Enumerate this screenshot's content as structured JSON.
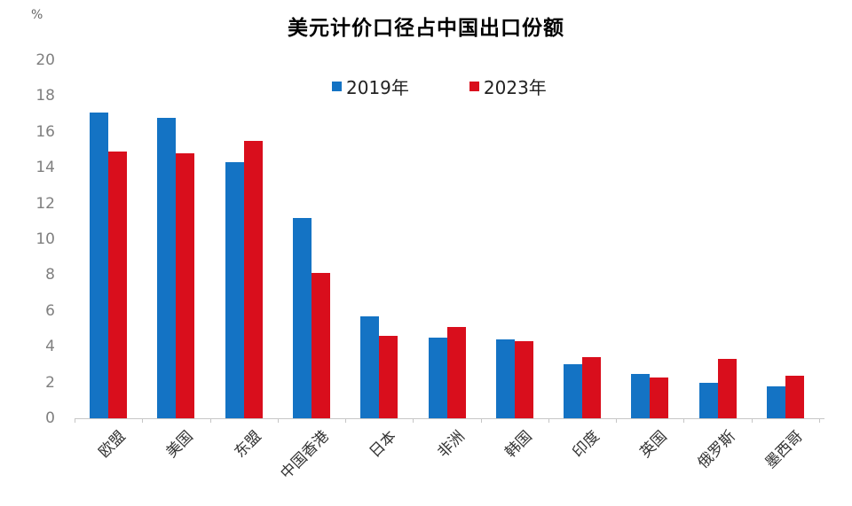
{
  "chart_data": {
    "type": "bar",
    "title": "美元计价口径占中国出口份额",
    "ylabel": "%",
    "xlabel": "",
    "ylim": [
      0,
      20
    ],
    "ytick_step": 2,
    "grid": false,
    "legend_position": "top-center",
    "categories": [
      "欧盟",
      "美国",
      "东盟",
      "中国香港",
      "日本",
      "非洲",
      "韩国",
      "印度",
      "英国",
      "俄罗斯",
      "墨西哥"
    ],
    "series": [
      {
        "name": "2019年",
        "color": "#1473C4",
        "values": [
          17.1,
          16.8,
          14.3,
          11.2,
          5.7,
          4.5,
          4.4,
          3.0,
          2.5,
          2.0,
          1.8
        ]
      },
      {
        "name": "2023年",
        "color": "#D90E1C",
        "values": [
          14.9,
          14.8,
          15.5,
          8.1,
          4.6,
          5.1,
          4.3,
          3.4,
          2.3,
          3.3,
          2.4
        ]
      }
    ]
  },
  "colors": {
    "axis": "#c6c6c6",
    "y_tick_label": "#7f7f7f",
    "category_label": "#333333",
    "title": "#000000"
  }
}
